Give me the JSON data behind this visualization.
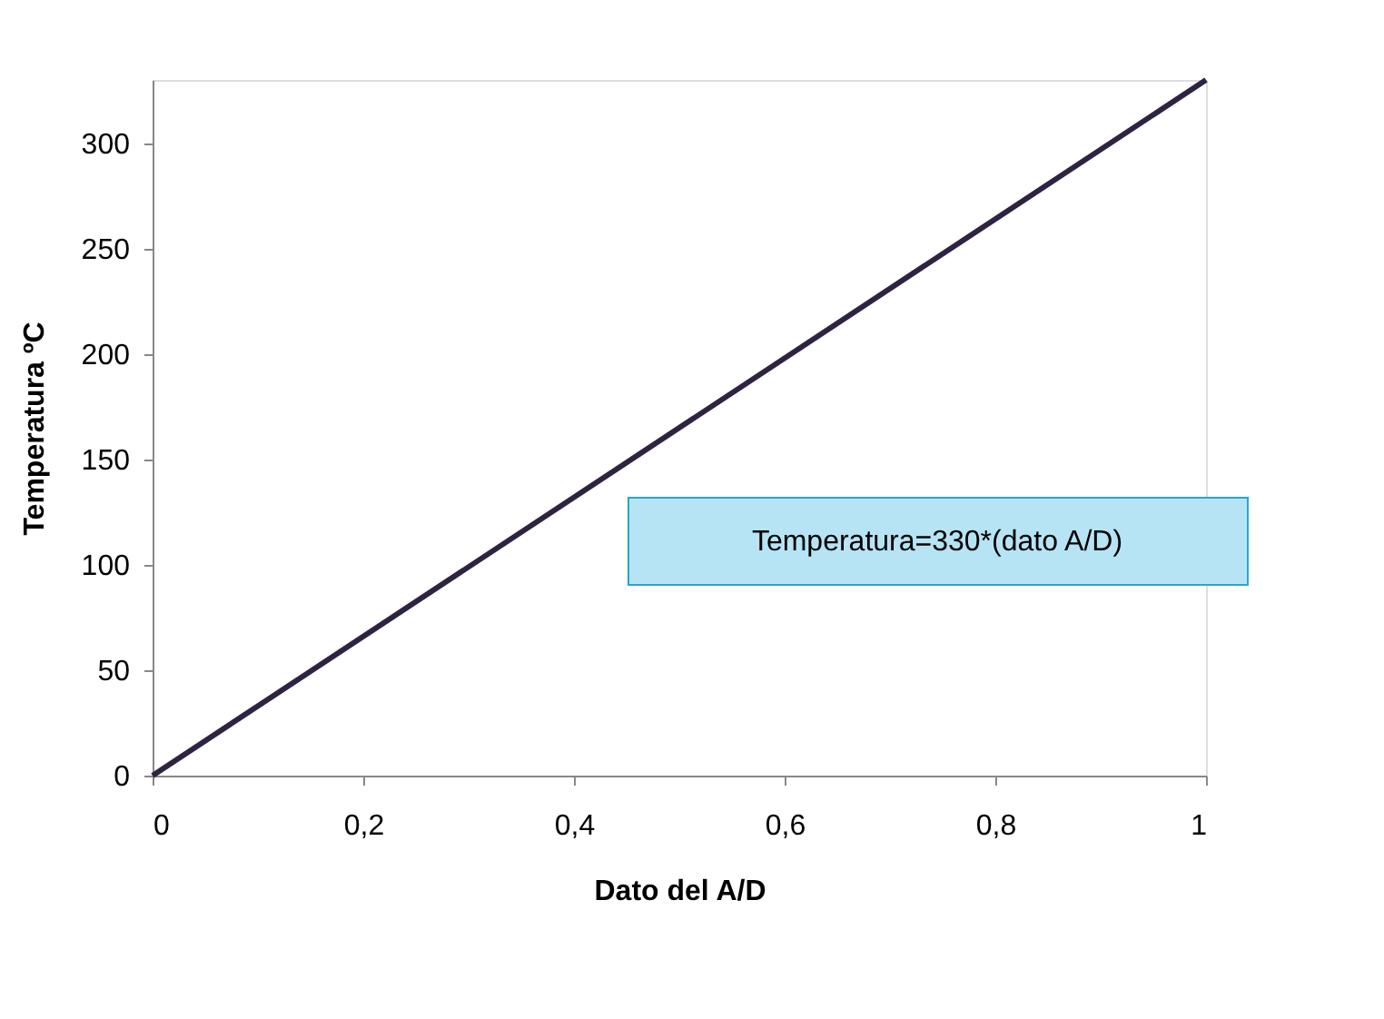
{
  "chart_data": {
    "type": "line",
    "xlabel": "Dato del A/D",
    "ylabel": "Temperatura ºC",
    "x": [
      0,
      1
    ],
    "series": [
      {
        "color": "#2e2340",
        "values": [
          0,
          330
        ]
      }
    ],
    "xlim": [
      0,
      1
    ],
    "xticks": [
      0,
      {
        "value": 0.2,
        "label": "0,2"
      },
      {
        "value": 0.4,
        "label": "0,4"
      },
      {
        "value": 0.6,
        "label": "0,6"
      },
      {
        "value": 0.8,
        "label": "0,8"
      },
      1
    ],
    "ylim": [
      0,
      330
    ],
    "yticks": [
      0,
      50,
      100,
      150,
      200,
      250,
      300
    ],
    "grid": false,
    "legend": false,
    "marker": "none",
    "line_style": "solid",
    "annotations": [
      "Temperatura=330*(dato A/D)"
    ]
  }
}
